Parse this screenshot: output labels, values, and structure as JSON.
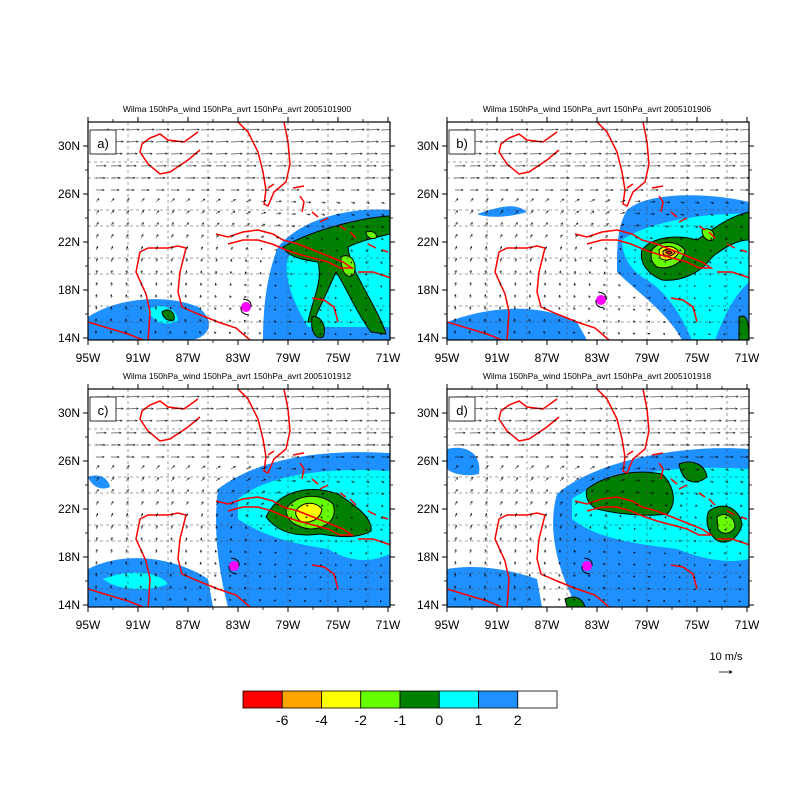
{
  "panels": [
    {
      "id": "a",
      "label": "a)",
      "title": "Wilma 150hPa_wind 150hPa_avrt 150hPa_avrt 2005101900"
    },
    {
      "id": "b",
      "label": "b)",
      "title": "Wilma 150hPa_wind 150hPa_avrt 150hPa_avrt 2005101906"
    },
    {
      "id": "c",
      "label": "c)",
      "title": "Wilma 150hPa_wind 150hPa_avrt 150hPa_avrt 2005101912"
    },
    {
      "id": "d",
      "label": "d)",
      "title": "Wilma 150hPa_wind 150hPa_avrt 150hPa_avrt 2005101918"
    }
  ],
  "axes": {
    "lon_ticks": [
      "95W",
      "91W",
      "87W",
      "83W",
      "79W",
      "75W",
      "71W"
    ],
    "lat_ticks": [
      "30N",
      "26N",
      "22N",
      "18N",
      "14N"
    ]
  },
  "reference_vector": {
    "label": "10 m/s"
  },
  "colorbar": {
    "colors": [
      "#ff0000",
      "#ffa500",
      "#ffff00",
      "#66ff00",
      "#008000",
      "#00ffff",
      "#1e90ff",
      "#ffffff"
    ],
    "labels": [
      "-6",
      "-4",
      "-2",
      "-1",
      "0",
      "1",
      "2"
    ]
  },
  "colors": {
    "coast": "#ff0000",
    "storm_marker": "#ff00ff",
    "vectors": "#000000"
  }
}
